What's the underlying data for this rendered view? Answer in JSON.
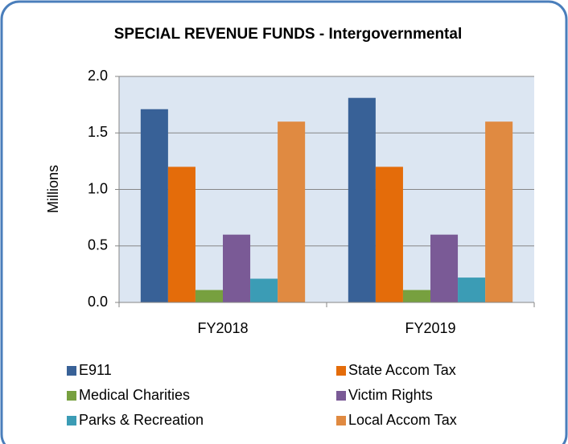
{
  "chart_data": {
    "type": "bar",
    "title": "SPECIAL REVENUE FUNDS - Intergovernmental",
    "y_label": "Millions",
    "categories": [
      "FY2018",
      "FY2019"
    ],
    "series": [
      {
        "name": "E911",
        "color": "#386197",
        "values": [
          1.71,
          1.81
        ]
      },
      {
        "name": "State Accom Tax",
        "color": "#e46c0a",
        "values": [
          1.2,
          1.2
        ]
      },
      {
        "name": "Medical Charities",
        "color": "#77a03f",
        "values": [
          0.11,
          0.11
        ]
      },
      {
        "name": "Victim Rights",
        "color": "#7a5a96",
        "values": [
          0.6,
          0.6
        ]
      },
      {
        "name": "Parks & Recreation",
        "color": "#3b9cb5",
        "values": [
          0.21,
          0.22
        ]
      },
      {
        "name": "Local Accom Tax",
        "color": "#e08a41",
        "values": [
          1.6,
          1.6
        ]
      }
    ],
    "ylim": [
      0,
      2
    ],
    "yticks": [
      {
        "value": 0,
        "label": "0.0"
      },
      0.5,
      {
        "value": 1,
        "label": "1.0"
      },
      1.5,
      {
        "value": 2,
        "label": "2.0"
      }
    ],
    "grid": true,
    "legend": "bottom"
  }
}
